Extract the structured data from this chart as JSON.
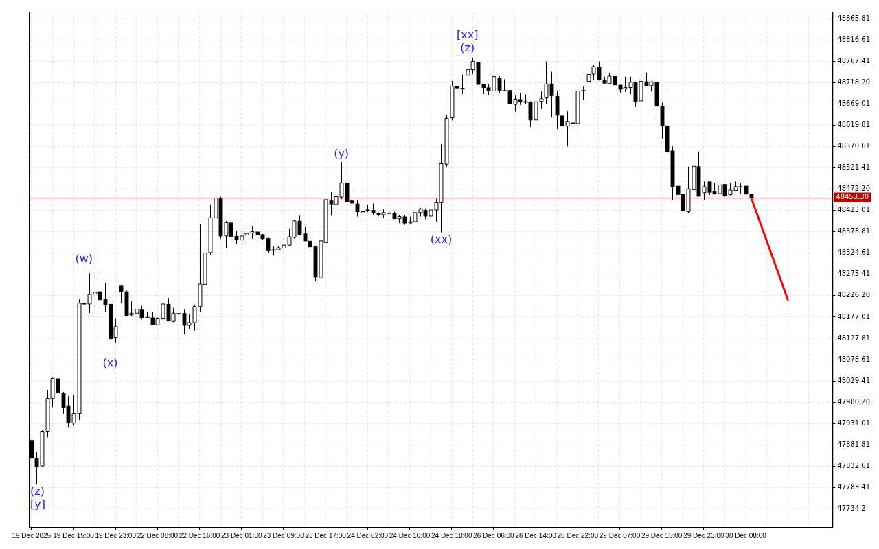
{
  "chart_data": {
    "type": "candlestick",
    "grid": true,
    "categories": [
      "19 Dec 2025",
      null,
      null,
      null,
      null,
      null,
      null,
      null,
      "19 Dec 15:00",
      null,
      null,
      null,
      null,
      null,
      null,
      null,
      "19 Dec 23:00",
      null,
      null,
      null,
      null,
      null,
      null,
      null,
      "22 Dec 08:00",
      null,
      null,
      null,
      null,
      null,
      null,
      null,
      "22 Dec 16:00",
      null,
      null,
      null,
      null,
      null,
      null,
      null,
      "23 Dec 01:00",
      null,
      null,
      null,
      null,
      null,
      null,
      null,
      "23 Dec 09:00",
      null,
      null,
      null,
      null,
      null,
      null,
      null,
      "23 Dec 17:00",
      null,
      null,
      null,
      null,
      null,
      null,
      null,
      "24 Dec 02:00",
      null,
      null,
      null,
      null,
      null,
      null,
      null,
      "24 Dec 10:00",
      null,
      null,
      null,
      null,
      null,
      null,
      null,
      "24 Dec 18:00",
      null,
      null,
      null,
      null,
      null,
      null,
      null,
      "26 Dec 06:00",
      null,
      null,
      null,
      null,
      null,
      null,
      null,
      "26 Dec 14:00",
      null,
      null,
      null,
      null,
      null,
      null,
      null,
      "26 Dec 22:00",
      null,
      null,
      null,
      null,
      null,
      null,
      null,
      "29 Dec 07:00",
      null,
      null,
      null,
      null,
      null,
      null,
      null,
      "29 Dec 15:00",
      null,
      null,
      null,
      null,
      null,
      null,
      null,
      "29 Dec 23:00",
      null,
      null,
      null,
      null,
      null,
      null,
      null,
      "30 Dec 08:00",
      null,
      null,
      null,
      null,
      null,
      null,
      null,
      null,
      null,
      null,
      null,
      null,
      null,
      null,
      null,
      null
    ],
    "ylim": [
      47692,
      48882
    ],
    "yticks": [
      48865.81,
      48816.61,
      48767.41,
      {
        "value": 48718.2,
        "label": "48718.20"
      },
      48669.01,
      48619.81,
      48570.61,
      48521.41,
      {
        "value": 48472.2,
        "label": "48472.20"
      },
      48423.01,
      48373.81,
      48324.61,
      48275.41,
      {
        "value": 48226.2,
        "label": "48226.20"
      },
      48177.01,
      48127.81,
      48078.61,
      48029.41,
      {
        "value": 47980.2,
        "label": "47980.20"
      },
      47931.01,
      47881.81,
      47832.61,
      47783.41,
      47734.2
    ],
    "ohlc": [
      [
        47893,
        47895,
        47827,
        47851
      ],
      [
        47851,
        47865,
        47790,
        47831
      ],
      [
        47833,
        47917,
        47832,
        47913
      ],
      [
        47913,
        48009,
        47899,
        47989
      ],
      [
        47989,
        48037,
        47969,
        48035
      ],
      [
        48035,
        48043,
        47991,
        48002
      ],
      [
        48001,
        48004,
        47953,
        47968
      ],
      [
        47973,
        47995,
        47923,
        47932
      ],
      [
        47932,
        47997,
        47926,
        47954
      ],
      [
        47954,
        48218,
        47939,
        48209
      ],
      [
        48209,
        48293,
        48176,
        48207
      ],
      [
        48207,
        48278,
        48186,
        48229
      ],
      [
        48230,
        48274,
        48200,
        48234
      ],
      [
        48236,
        48280,
        48211,
        48217
      ],
      [
        48218,
        48256,
        48189,
        48206
      ],
      [
        48207,
        48222,
        48087,
        48127
      ],
      [
        48130,
        48173,
        48117,
        48155
      ],
      [
        48249,
        48250,
        48209,
        48235
      ],
      [
        48236,
        48238,
        48180,
        48180
      ],
      [
        48182,
        48213,
        48179,
        48186
      ],
      [
        48186,
        48196,
        48174,
        48195
      ],
      [
        48194,
        48203,
        48172,
        48176
      ],
      [
        48177,
        48189,
        48175,
        48175
      ],
      [
        48176,
        48189,
        48158,
        48159
      ],
      [
        48159,
        48176,
        48158,
        48173
      ],
      [
        48173,
        48215,
        48171,
        48207
      ],
      [
        48207,
        48221,
        48167,
        48168
      ],
      [
        48167,
        48198,
        48165,
        48186
      ],
      [
        48186,
        48199,
        48178,
        48185
      ],
      [
        48186,
        48194,
        48137,
        48158
      ],
      [
        48158,
        48183,
        48150,
        48164
      ],
      [
        48164,
        48204,
        48145,
        48201
      ],
      [
        48201,
        48391,
        48189,
        48253
      ],
      [
        48252,
        48385,
        48226,
        48325
      ],
      [
        48326,
        48437,
        48321,
        48406
      ],
      [
        48406,
        48463,
        48373,
        48452
      ],
      [
        48452,
        48455,
        48358,
        48364
      ],
      [
        48364,
        48399,
        48336,
        48395
      ],
      [
        48395,
        48415,
        48353,
        48363
      ],
      [
        48364,
        48376,
        48345,
        48355
      ],
      [
        48355,
        48379,
        48348,
        48364
      ],
      [
        48366,
        48371,
        48355,
        48370
      ],
      [
        48371,
        48386,
        48358,
        48374
      ],
      [
        48374,
        48394,
        48358,
        48367
      ],
      [
        48368,
        48368,
        48355,
        48358
      ],
      [
        48359,
        48360,
        48326,
        48330
      ],
      [
        48333,
        48340,
        48319,
        48331
      ],
      [
        48332,
        48340,
        48331,
        48337
      ],
      [
        48336,
        48354,
        48335,
        48343
      ],
      [
        48343,
        48381,
        48340,
        48362
      ],
      [
        48361,
        48401,
        48358,
        48399
      ],
      [
        48399,
        48411,
        48365,
        48368
      ],
      [
        48370,
        48385,
        48353,
        48353
      ],
      [
        48353,
        48367,
        48327,
        48339
      ],
      [
        48340,
        48341,
        48260,
        48269
      ],
      [
        48269,
        48386,
        48214,
        48353
      ],
      [
        48349,
        48475,
        48323,
        48448
      ],
      [
        48446,
        48465,
        48411,
        48438
      ],
      [
        48437,
        48480,
        48419,
        48455
      ],
      [
        48454,
        48535,
        48449,
        48487
      ],
      [
        48487,
        48493,
        48443,
        48443
      ],
      [
        48446,
        48472,
        48436,
        48440
      ],
      [
        48439,
        48446,
        48409,
        48420
      ],
      [
        48417,
        48431,
        48415,
        48420
      ],
      [
        48425,
        48437,
        48419,
        48423
      ],
      [
        48424,
        48439,
        48413,
        48418
      ],
      [
        48417,
        48418,
        48410,
        48413
      ],
      [
        48413,
        48426,
        48405,
        48418
      ],
      [
        48418,
        48424,
        48412,
        48416
      ],
      [
        48417,
        48420,
        48404,
        48404
      ],
      [
        48404,
        48412,
        48394,
        48409
      ],
      [
        48409,
        48412,
        48390,
        48394
      ],
      [
        48394,
        48409,
        48392,
        48397
      ],
      [
        48397,
        48423,
        48393,
        48418
      ],
      [
        48418,
        48429,
        48409,
        48426
      ],
      [
        48424,
        48428,
        48403,
        48410
      ],
      [
        48410,
        48427,
        48408,
        48424
      ],
      [
        48424,
        48450,
        48397,
        48441
      ],
      [
        48441,
        48576,
        48372,
        48531
      ],
      [
        48530,
        48643,
        48522,
        48636
      ],
      [
        48637,
        48722,
        48631,
        48710
      ],
      [
        48710,
        48772,
        48705,
        48706
      ],
      [
        48706,
        48737,
        48692,
        48704
      ],
      [
        48735,
        48779,
        48730,
        48748
      ],
      [
        48748,
        48776,
        48738,
        48767
      ],
      [
        48766,
        48766,
        48714,
        48714
      ],
      [
        48715,
        48716,
        48692,
        48707
      ],
      [
        48707,
        48715,
        48689,
        48699
      ],
      [
        48699,
        48735,
        48697,
        48732
      ],
      [
        48730,
        48733,
        48695,
        48701
      ],
      [
        48701,
        48726,
        48699,
        48699
      ],
      [
        48701,
        48702,
        48669,
        48670
      ],
      [
        48668,
        48689,
        48651,
        48680
      ],
      [
        48680,
        48694,
        48667,
        48674
      ],
      [
        48675,
        48691,
        48669,
        48673
      ],
      [
        48674,
        48675,
        48616,
        48632
      ],
      [
        48632,
        48678,
        48631,
        48674
      ],
      [
        48675,
        48698,
        48657,
        48681
      ],
      [
        48683,
        48767,
        48668,
        48715
      ],
      [
        48716,
        48743,
        48638,
        48688
      ],
      [
        48687,
        48699,
        48611,
        48643
      ],
      [
        48642,
        48668,
        48597,
        48618
      ],
      [
        48618,
        48652,
        48571,
        48628
      ],
      [
        48626,
        48655,
        48608,
        48624
      ],
      [
        48624,
        48721,
        48622,
        48699
      ],
      [
        48701,
        48709,
        48679,
        48700
      ],
      [
        48721,
        48750,
        48713,
        48737
      ],
      [
        48738,
        48759,
        48724,
        48755
      ],
      [
        48755,
        48767,
        48723,
        48725
      ],
      [
        48725,
        48732,
        48715,
        48717
      ],
      [
        48716,
        48741,
        48715,
        48733
      ],
      [
        48733,
        48738,
        48713,
        48713
      ],
      [
        48713,
        48713,
        48694,
        48703
      ],
      [
        48704,
        48732,
        48697,
        48707
      ],
      [
        48707,
        48732,
        48692,
        48719
      ],
      [
        48720,
        48721,
        48662,
        48674
      ],
      [
        48676,
        48725,
        48676,
        48721
      ],
      [
        48721,
        48741,
        48711,
        48711
      ],
      [
        48711,
        48721,
        48698,
        48720
      ],
      [
        48720,
        48720,
        48635,
        48664
      ],
      [
        48665,
        48672,
        48589,
        48618
      ],
      [
        48619,
        48702,
        48522,
        48558
      ],
      [
        48561,
        48571,
        48448,
        48478
      ],
      [
        48480,
        48500,
        48415,
        48460
      ],
      [
        48461,
        48468,
        48382,
        48422
      ],
      [
        48420,
        48524,
        48417,
        48473
      ],
      [
        48471,
        48531,
        48427,
        48525
      ],
      [
        48525,
        48559,
        48456,
        48456
      ],
      [
        48464,
        48490,
        48447,
        48478
      ],
      [
        48490,
        48490,
        48459,
        48465
      ],
      [
        48467,
        48486,
        48461,
        48461
      ],
      [
        48462,
        48484,
        48456,
        48482
      ],
      [
        48484,
        48484,
        48455,
        48457
      ],
      [
        48460,
        48487,
        48458,
        48470
      ],
      [
        48469,
        48490,
        48467,
        48478
      ],
      [
        48479,
        48486,
        48461,
        48478
      ],
      [
        48480,
        48480,
        48451,
        48461
      ],
      [
        48462,
        48462,
        48453,
        48453.3
      ],
      null,
      null,
      null,
      null,
      null,
      null,
      null,
      null,
      null,
      null,
      null,
      null,
      null,
      null,
      null
    ],
    "series": [
      {
        "type": "line",
        "color": "#ff0000",
        "marker": "none",
        "values": [
          null,
          null,
          null,
          null,
          null,
          null,
          null,
          null,
          null,
          null,
          null,
          null,
          null,
          null,
          null,
          null,
          null,
          null,
          null,
          null,
          null,
          null,
          null,
          null,
          null,
          null,
          null,
          null,
          null,
          null,
          null,
          null,
          null,
          null,
          null,
          null,
          null,
          null,
          null,
          null,
          null,
          null,
          null,
          null,
          null,
          null,
          null,
          null,
          null,
          null,
          null,
          null,
          null,
          null,
          null,
          null,
          null,
          null,
          null,
          null,
          null,
          null,
          null,
          null,
          null,
          null,
          null,
          null,
          null,
          null,
          null,
          null,
          null,
          null,
          null,
          null,
          null,
          null,
          null,
          null,
          null,
          null,
          null,
          null,
          null,
          null,
          null,
          null,
          null,
          null,
          null,
          null,
          null,
          null,
          null,
          null,
          null,
          null,
          null,
          null,
          null,
          null,
          null,
          null,
          null,
          null,
          null,
          null,
          null,
          null,
          null,
          null,
          null,
          null,
          null,
          null,
          null,
          null,
          null,
          null,
          null,
          null,
          null,
          null,
          null,
          null,
          null,
          null,
          null,
          null,
          null,
          null,
          null,
          null,
          null,
          null,
          null,
          48453,
          null,
          null,
          null,
          null,
          null,
          null,
          48217,
          null,
          null,
          null,
          null,
          null,
          null,
          null,
          null
        ]
      }
    ],
    "ref_lines": [
      {
        "axis": "y",
        "value": 48453.3,
        "label": "48453.30",
        "color": "#c00000"
      }
    ],
    "annotations": [
      {
        "text": "(w)",
        "y": 48293
      },
      {
        "text": "(x)",
        "y": 48087
      },
      {
        "text": "(y)",
        "y": 48535
      },
      {
        "text": "(xx)",
        "y": 48372
      },
      {
        "text": "(z)",
        "y": 48779
      },
      {
        "text": "[xx]",
        "y": 48779
      },
      {
        "text": "(z)",
        "y": 47790
      },
      {
        "text": "[y]",
        "y": 47790
      }
    ]
  }
}
